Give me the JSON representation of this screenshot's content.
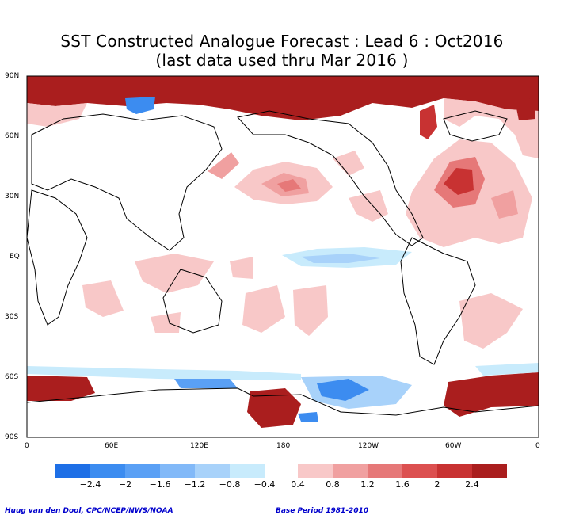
{
  "title": "SST Constructed Analogue Forecast : Lead 6 : Oct2016",
  "subtitle": "(last data used thru Mar 2016 )",
  "lat_labels": [
    "90N",
    "60N",
    "30N",
    "EQ",
    "30S",
    "60S",
    "90S"
  ],
  "lon_labels": [
    "0",
    "60E",
    "120E",
    "180",
    "120W",
    "60W",
    "0"
  ],
  "colorbar": {
    "cold_colors": [
      "#1e6fe6",
      "#3c8cf0",
      "#5aa0f5",
      "#82b9f8",
      "#a8d2fa",
      "#c8ebfc"
    ],
    "warm_colors": [
      "#f8c8c8",
      "#f0a0a0",
      "#e67878",
      "#dc5050",
      "#c83232",
      "#aa1e1e"
    ],
    "cold_labels": [
      "−2.4",
      "−2",
      "−1.6",
      "−1.2",
      "−0.8",
      "−0.4"
    ],
    "warm_labels": [
      "0.4",
      "0.8",
      "1.2",
      "1.6",
      "2",
      "2.4"
    ]
  },
  "credit": "Huug van den Dool, CPC/NCEP/NWS/NOAA",
  "base_period": "Base Period 1981-2010"
}
